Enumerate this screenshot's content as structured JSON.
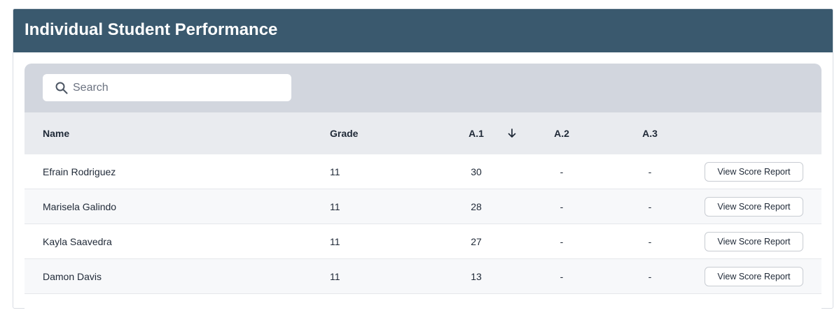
{
  "header": {
    "title": "Individual Student Performance"
  },
  "search": {
    "placeholder": "Search"
  },
  "table": {
    "columns": [
      "Name",
      "Grade",
      "A.1",
      "A.2",
      "A.3"
    ],
    "rows": [
      [
        "Efrain Rodriguez",
        11,
        30,
        "-",
        "-",
        "View Score Report"
      ],
      [
        "Marisela Galindo",
        11,
        28,
        "-",
        "-",
        "View Score Report"
      ],
      [
        "Kayla Saavedra",
        11,
        27,
        "-",
        "-",
        "View Score Report"
      ],
      [
        "Damon Davis",
        11,
        13,
        "-",
        "-",
        "View Score Report"
      ]
    ]
  }
}
